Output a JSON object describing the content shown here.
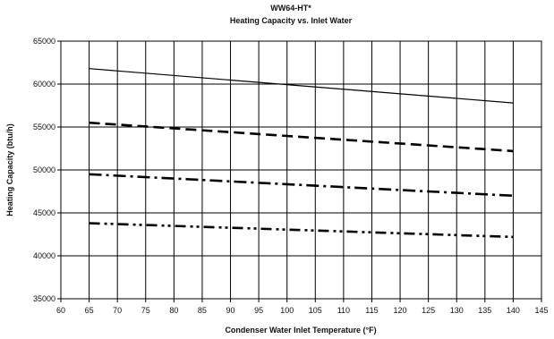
{
  "chart_data": {
    "type": "line",
    "title": "WW64-HT*",
    "subtitle": "Heating Capacity vs. Inlet Water",
    "xlabel": "Condenser Water Inlet Temperature (°F)",
    "ylabel": "Heating Capacity (btu/h)",
    "xlim": [
      60,
      145
    ],
    "ylim": [
      35000,
      65000
    ],
    "x_ticks": [
      60,
      65,
      70,
      75,
      80,
      85,
      90,
      95,
      100,
      105,
      110,
      115,
      120,
      125,
      130,
      135,
      140,
      145
    ],
    "y_ticks": [
      35000,
      40000,
      45000,
      50000,
      55000,
      60000,
      65000
    ],
    "x_tick_labels": [
      "60",
      "65",
      "70",
      "75",
      "80",
      "85",
      "90",
      "95",
      "100",
      "105",
      "110",
      "115",
      "120",
      "125",
      "130",
      "135",
      "140",
      "145"
    ],
    "y_tick_labels": [
      "35000",
      "40000",
      "45000",
      "50000",
      "55000",
      "60000",
      "65000"
    ],
    "grid": true,
    "legend": "none",
    "series": [
      {
        "style": "solid",
        "x": [
          65,
          140
        ],
        "y": [
          61800,
          57800
        ]
      },
      {
        "style": "dashed",
        "x": [
          65,
          140
        ],
        "y": [
          55500,
          52200
        ]
      },
      {
        "style": "dash-dot",
        "x": [
          65,
          140
        ],
        "y": [
          49500,
          47000
        ]
      },
      {
        "style": "dash-dot-dot",
        "x": [
          65,
          140
        ],
        "y": [
          43800,
          42200
        ]
      }
    ]
  }
}
